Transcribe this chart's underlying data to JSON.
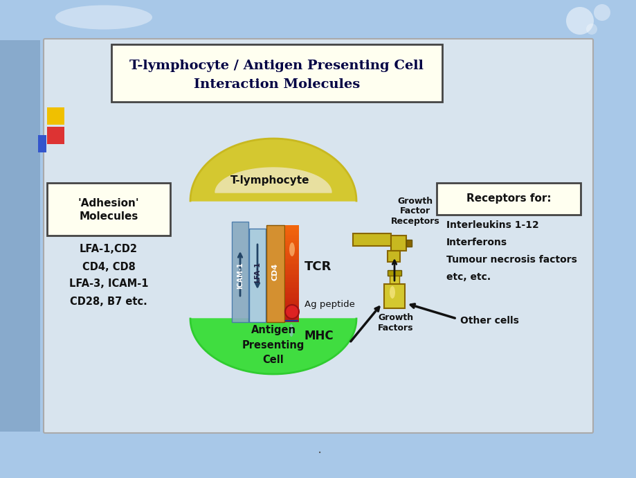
{
  "bg_color": "#a8c8e8",
  "panel_bg": "#d8e4ee",
  "title_text_line1": "T-lymphocyte / Antigen Presenting Cell",
  "title_text_line2": "Interaction Molecules",
  "title_box_color": "#fffff0",
  "title_box_edge": "#333333",
  "adhesion_box_text": "'Adhesion'\nMolecules",
  "adhesion_list_lines": [
    "LFA-1,CD2",
    "CD4, CD8",
    "LFA-3, ICAM-1",
    "CD28, B7 etc."
  ],
  "receptors_box_text": "Receptors for:",
  "receptors_list_lines": [
    "Interleukins 1-12",
    "Interferons",
    "Tumour necrosis factors",
    "etc, etc."
  ],
  "t_lymphocyte_label": "T-lymphocyte",
  "antigen_cell_label": "Antigen\nPresenting\nCell",
  "growth_factor_receptors": "Growth\nFactor\nReceptors",
  "tcr_label": "TCR",
  "ag_peptide_label": "Ag peptide",
  "mhc_label": "MHC",
  "cd4_label": "CD4",
  "lfa1_label": "LFA-1",
  "icam1_label": "ICAM-1",
  "growth_factors_label": "Growth\nFactors",
  "other_cells_label": "Other cells",
  "t_cell_color": "#d4c830",
  "t_cell_color2": "#c8b820",
  "antigen_cell_color": "#40dd40",
  "antigen_cell_color2": "#30cc30",
  "cd4_color": "#d49030",
  "lfa1_color": "#aaccdd",
  "icam1_color": "#88aac0",
  "tcr_top_color": "#ff8833",
  "tcr_bot_color": "#cc4400",
  "mhc_color": "#3355cc",
  "growth_factor_color": "#d4c830",
  "gfr_color": "#c8b820"
}
